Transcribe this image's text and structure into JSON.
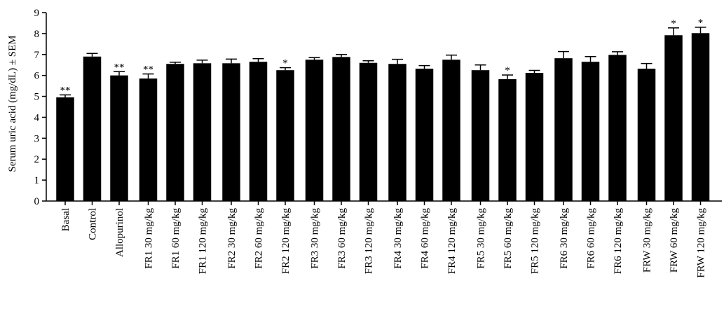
{
  "chart_data": {
    "type": "bar",
    "ylabel": "Serum uric acid (mg/dL) ± SEM",
    "ylim": [
      0,
      9
    ],
    "yticks": [
      "0",
      "1",
      "2",
      "3",
      "4",
      "5",
      "6",
      "7",
      "8",
      "9"
    ],
    "categories": [
      "Basal",
      "Control",
      "Allopurinol",
      "FR1 30 mg/kg",
      "FR1 60 mg/kg",
      "FR1 120 mg/kg",
      "FR2 30 mg/kg",
      "FR2 60 mg/kg",
      "FR2 120 mg/kg",
      "FR3 30 mg/kg",
      "FR3 60 mg/kg",
      "FR3 120 mg/kg",
      "FR4 30 mg/kg",
      "FR4 60 mg/kg",
      "FR4 120 mg/kg",
      "FR5 30 mg/kg",
      "FR5 60 mg/kg",
      "FR5 120 mg/kg",
      "FR6 30 mg/kg",
      "FR6 60 mg/kg",
      "FR6 120 mg/kg",
      "FRW 30 mg/kg",
      "FRW 60 mg/kg",
      "FRW 120 mg/kg"
    ],
    "values": [
      4.95,
      6.9,
      6.0,
      5.85,
      6.55,
      6.58,
      6.58,
      6.65,
      6.25,
      6.75,
      6.88,
      6.6,
      6.55,
      6.32,
      6.75,
      6.25,
      5.82,
      6.12,
      6.82,
      6.65,
      6.98,
      6.32,
      7.92,
      8.02
    ],
    "errors": [
      0.12,
      0.15,
      0.18,
      0.22,
      0.08,
      0.15,
      0.2,
      0.15,
      0.12,
      0.1,
      0.12,
      0.1,
      0.22,
      0.15,
      0.22,
      0.25,
      0.2,
      0.12,
      0.32,
      0.25,
      0.15,
      0.25,
      0.35,
      0.28
    ],
    "significance": [
      "**",
      "",
      "**",
      "**",
      "",
      "",
      "",
      "",
      "*",
      "",
      "",
      "",
      "",
      "",
      "",
      "",
      "*",
      "",
      "",
      "",
      "",
      "",
      "*",
      "*"
    ],
    "bar_color": "#000000"
  }
}
